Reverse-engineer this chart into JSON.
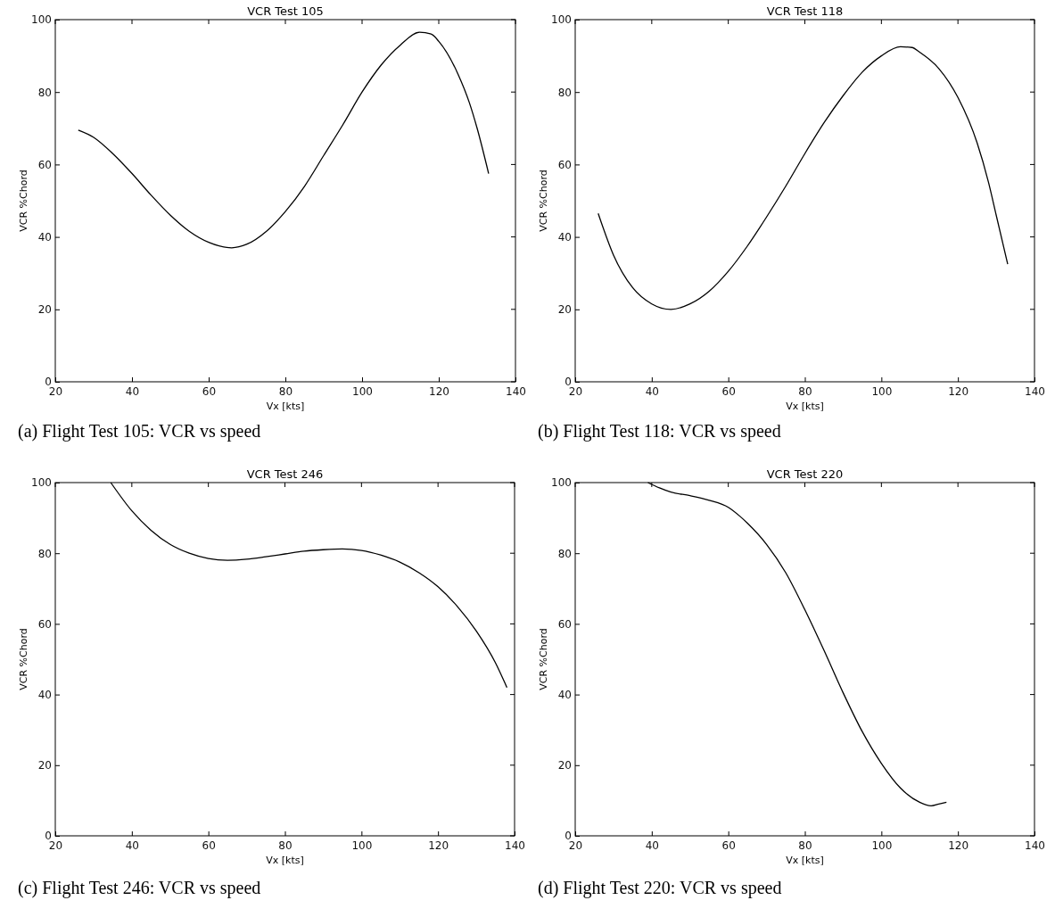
{
  "chart_data": [
    {
      "type": "line",
      "title": "VCR Test 105",
      "xlabel": "Vx [kts]",
      "ylabel": "VCR %Chord",
      "xlim": [
        20,
        140
      ],
      "ylim": [
        0,
        100
      ],
      "xticks": [
        20,
        40,
        60,
        80,
        100,
        120,
        140
      ],
      "yticks": [
        0,
        20,
        40,
        60,
        80,
        100
      ],
      "annotations": [
        "(a) Flight Test 105: VCR vs speed"
      ],
      "series": [
        {
          "color": "#000000",
          "x": [
            26,
            30,
            35,
            40,
            45,
            50,
            55,
            60,
            66,
            70,
            75,
            80,
            85,
            90,
            95,
            100,
            105,
            110,
            115,
            118,
            120,
            125,
            128,
            130,
            133
          ],
          "values": [
            69.5,
            67.5,
            63,
            57.5,
            51.5,
            46,
            41.5,
            38.5,
            37,
            38,
            41.5,
            47,
            54,
            62.5,
            71,
            80,
            87.5,
            93,
            96.5,
            96,
            94,
            85,
            77,
            70,
            57.5
          ]
        }
      ]
    },
    {
      "type": "line",
      "title": "VCR Test 118",
      "xlabel": "Vx [kts]",
      "ylabel": "VCR %Chord",
      "xlim": [
        20,
        140
      ],
      "ylim": [
        0,
        100
      ],
      "xticks": [
        20,
        40,
        60,
        80,
        100,
        120,
        140
      ],
      "yticks": [
        0,
        20,
        40,
        60,
        80,
        100
      ],
      "annotations": [
        "(b) Flight Test 118: VCR vs speed"
      ],
      "series": [
        {
          "color": "#000000",
          "x": [
            26,
            30,
            35,
            40,
            45,
            50,
            55,
            60,
            65,
            70,
            75,
            80,
            85,
            90,
            95,
            100,
            105,
            108,
            110,
            115,
            120,
            125,
            128,
            130,
            133
          ],
          "values": [
            46.5,
            35,
            26,
            21.5,
            20,
            21.5,
            25,
            30.5,
            37.5,
            45.5,
            54,
            63,
            71.5,
            79,
            85.5,
            90,
            92.5,
            92.3,
            91,
            86.5,
            78.5,
            66,
            55,
            46,
            32.5
          ]
        }
      ]
    },
    {
      "type": "line",
      "title": "VCR Test 246",
      "xlabel": "Vx [kts]",
      "ylabel": "VCR %Chord",
      "xlim": [
        20,
        140
      ],
      "ylim": [
        0,
        100
      ],
      "xticks": [
        20,
        40,
        60,
        80,
        100,
        120,
        140
      ],
      "yticks": [
        0,
        20,
        40,
        60,
        80,
        100
      ],
      "annotations": [
        "(c) Flight Test 246: VCR vs speed"
      ],
      "series": [
        {
          "color": "#000000",
          "x": [
            34.5,
            40,
            45,
            50,
            55,
            60,
            65,
            70,
            75,
            80,
            85,
            90,
            95,
            100,
            105,
            110,
            115,
            120,
            125,
            130,
            135,
            138
          ],
          "values": [
            100,
            92,
            86.5,
            82.5,
            80,
            78.5,
            78,
            78.3,
            79,
            79.8,
            80.6,
            81,
            81.2,
            80.8,
            79.5,
            77.5,
            74.5,
            70.5,
            65,
            58,
            49,
            42
          ]
        }
      ]
    },
    {
      "type": "line",
      "title": "VCR Test 220",
      "xlabel": "Vx [kts]",
      "ylabel": "VCR %Chord",
      "xlim": [
        20,
        140
      ],
      "ylim": [
        0,
        100
      ],
      "xticks": [
        20,
        40,
        60,
        80,
        100,
        120,
        140
      ],
      "yticks": [
        0,
        20,
        40,
        60,
        80,
        100
      ],
      "annotations": [
        "(d) Flight Test 220: VCR vs speed"
      ],
      "series": [
        {
          "color": "#000000",
          "x": [
            39,
            42,
            45,
            50,
            55,
            60,
            63,
            65,
            70,
            75,
            80,
            85,
            90,
            95,
            100,
            105,
            110,
            113,
            115,
            117
          ],
          "values": [
            100,
            98.5,
            97.3,
            96.3,
            95,
            93,
            90.5,
            88.5,
            82.5,
            74.5,
            64,
            52.5,
            40.5,
            29.5,
            20.5,
            13.5,
            9.5,
            8.5,
            9,
            9.5
          ]
        }
      ]
    }
  ]
}
